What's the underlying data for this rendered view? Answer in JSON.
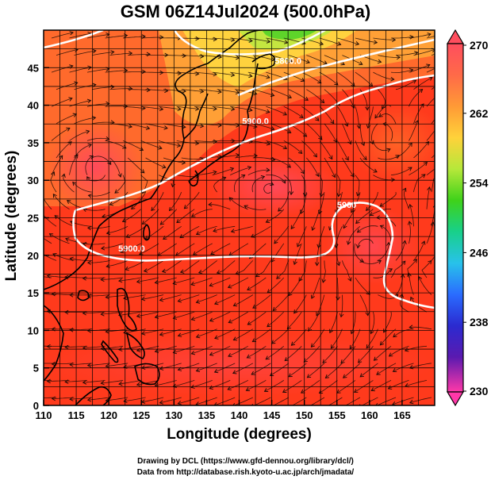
{
  "title": "GSM 06Z14Jul2024 (500.0hPa)",
  "xlabel": "Longitude (degrees)",
  "ylabel": "Latitude  (degrees)",
  "credits": {
    "line1": "Drawing by DCL (https://www.gfd-dennou.org/library/dcl/)",
    "line2": "Data from http://database.rish.kyoto-u.ac.jp/arch/jmadata/"
  },
  "map": {
    "lon_range": [
      110,
      170
    ],
    "lat_range": [
      0,
      50
    ],
    "x_ticks": [
      110,
      115,
      120,
      125,
      130,
      135,
      140,
      145,
      150,
      155,
      160,
      165
    ],
    "y_ticks": [
      0,
      5,
      10,
      15,
      20,
      25,
      30,
      35,
      40,
      45
    ],
    "grid": true,
    "contour_labels": [
      {
        "text": "5900.0",
        "lon": 123.5,
        "lat": 20.5
      },
      {
        "text": "5900.0",
        "lon": 142.5,
        "lat": 37.5
      },
      {
        "text": "5800.0",
        "lon": 147.5,
        "lat": 45.5
      },
      {
        "text": "5900",
        "lon": 156.5,
        "lat": 26.3
      }
    ]
  },
  "colorbar": {
    "ticks": [
      "270",
      "262",
      "254",
      "246",
      "238",
      "230"
    ],
    "colors": [
      "#ff4e5e",
      "#ff8a3a",
      "#ffc23a",
      "#c8e83a",
      "#46d21e",
      "#1fd37a",
      "#2cc8e6",
      "#2a78ff",
      "#2d2cd8",
      "#3e1ab0",
      "#a0209a",
      "#ff3ca0"
    ]
  }
}
